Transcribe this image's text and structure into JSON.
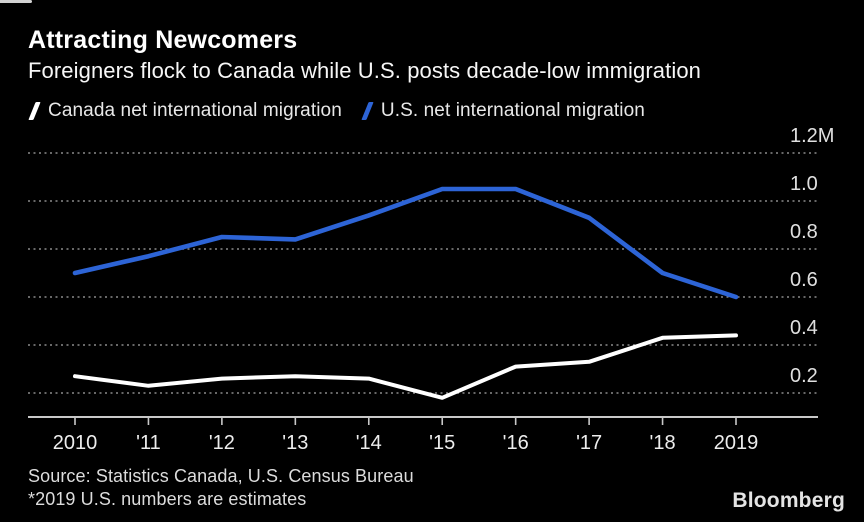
{
  "header": {
    "title": "Attracting Newcomers",
    "subtitle": "Foreigners flock to Canada while U.S. posts decade-low immigration"
  },
  "chart_data": {
    "type": "line",
    "title": "Attracting Newcomers",
    "subtitle": "Foreigners flock to Canada while U.S. posts decade-low immigration",
    "categories": [
      "2010",
      "'11",
      "'12",
      "'13",
      "'14",
      "'15",
      "'16",
      "'17",
      "'18",
      "2019"
    ],
    "series": [
      {
        "name": "Canada net international migration",
        "color": "#ffffff",
        "values": [
          0.27,
          0.23,
          0.26,
          0.27,
          0.26,
          0.18,
          0.31,
          0.33,
          0.43,
          0.44
        ]
      },
      {
        "name": "U.S. net international migration",
        "color": "#2d64d6",
        "values": [
          0.7,
          0.77,
          0.85,
          0.84,
          0.94,
          1.05,
          1.05,
          0.93,
          0.7,
          0.6
        ]
      }
    ],
    "unit": "M",
    "yticks": [
      {
        "value": 0.2,
        "label": "0.2"
      },
      {
        "value": 0.4,
        "label": "0.4"
      },
      {
        "value": 0.6,
        "label": "0.6"
      },
      {
        "value": 0.8,
        "label": "0.8"
      },
      {
        "value": 1.0,
        "label": "1.0"
      },
      {
        "value": 1.2,
        "label": "1.2M"
      }
    ],
    "ylim": [
      0.1,
      1.3
    ],
    "xlabel": "",
    "ylabel": "",
    "grid": "horizontal-dotted",
    "legend_position": "top-left"
  },
  "footer": {
    "source": "Source: Statistics Canada, U.S. Census Bureau",
    "footnote": "*2019 U.S. numbers are estimates",
    "brand": "Bloomberg"
  },
  "colors": {
    "background": "#000000",
    "title_text": "#ffffff",
    "secondary_text": "#dcdcdc",
    "grid": "#8a8a8a",
    "axis": "#c8c8c8",
    "tick_label": "#ededed",
    "canada_line": "#ffffff",
    "us_line": "#2d64d6"
  }
}
